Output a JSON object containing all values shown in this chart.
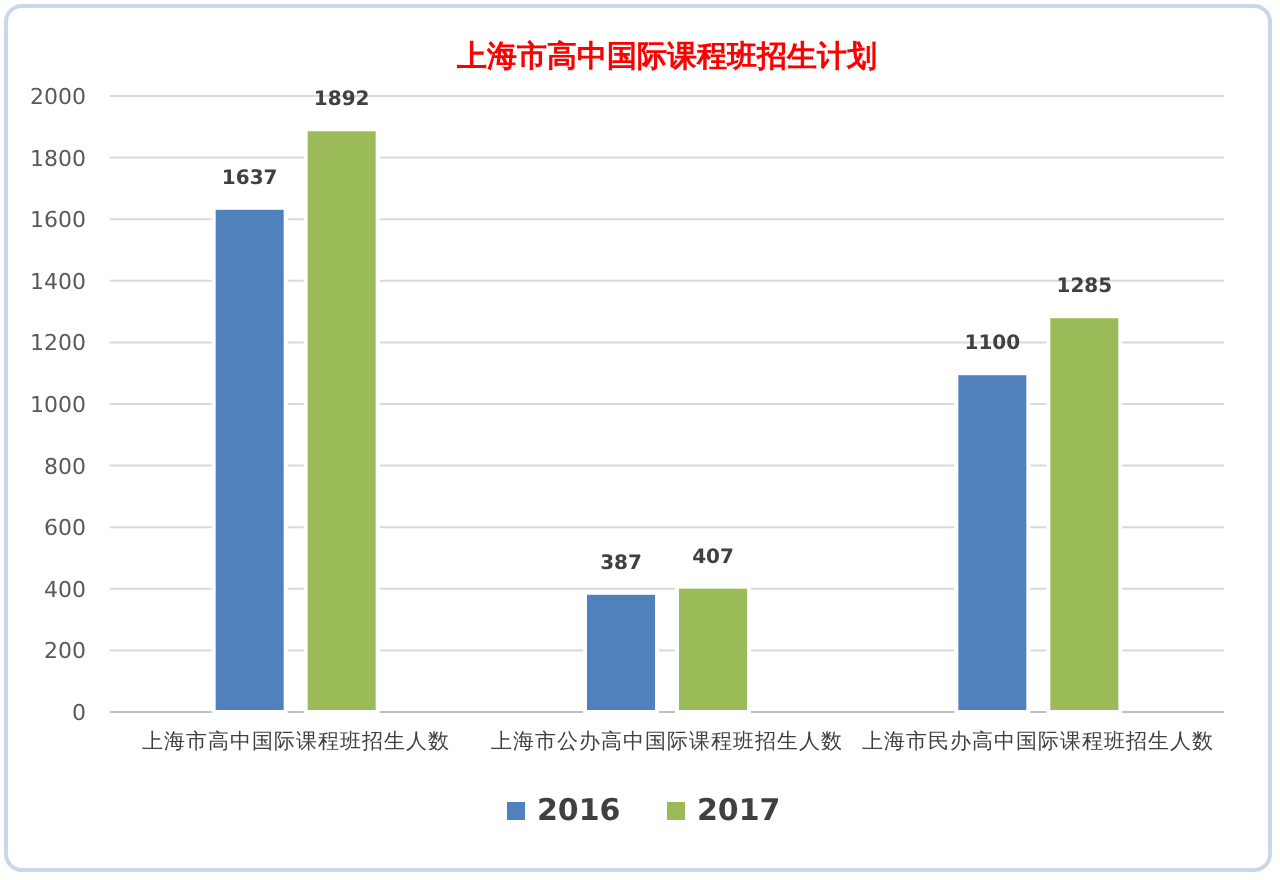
{
  "chart_data": {
    "type": "bar",
    "title": "上海市高中国际课程班招生计划",
    "categories": [
      "上海市高中国际课程班招生人数",
      "上海市公办高中国际课程班招生人数",
      "上海市民办高中国际课程班招生人数"
    ],
    "series": [
      {
        "name": "2016",
        "color": "#4f81bd",
        "values": [
          1637,
          387,
          1100
        ]
      },
      {
        "name": "2017",
        "color": "#9bbb59",
        "values": [
          1892,
          407,
          1285
        ]
      }
    ],
    "ylim": [
      0,
      2000
    ],
    "yticks": [
      0,
      200,
      400,
      600,
      800,
      1000,
      1200,
      1400,
      1600,
      1800,
      2000
    ],
    "grid": "y",
    "legend": "bottom",
    "data_labels": true
  }
}
